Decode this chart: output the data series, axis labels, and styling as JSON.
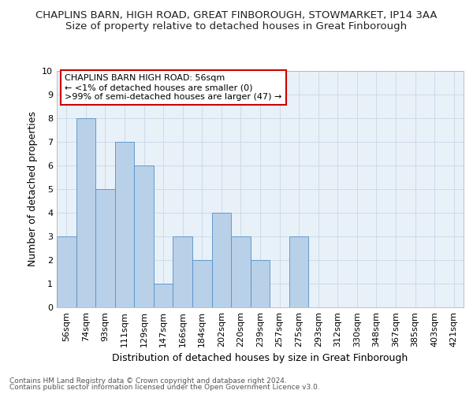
{
  "title": "CHAPLINS BARN, HIGH ROAD, GREAT FINBOROUGH, STOWMARKET, IP14 3AA",
  "subtitle": "Size of property relative to detached houses in Great Finborough",
  "xlabel": "Distribution of detached houses by size in Great Finborough",
  "ylabel": "Number of detached properties",
  "categories": [
    "56sqm",
    "74sqm",
    "93sqm",
    "111sqm",
    "129sqm",
    "147sqm",
    "166sqm",
    "184sqm",
    "202sqm",
    "220sqm",
    "239sqm",
    "257sqm",
    "275sqm",
    "293sqm",
    "312sqm",
    "330sqm",
    "348sqm",
    "367sqm",
    "385sqm",
    "403sqm",
    "421sqm"
  ],
  "values": [
    3,
    8,
    5,
    7,
    6,
    1,
    3,
    2,
    4,
    3,
    2,
    0,
    3,
    0,
    0,
    0,
    0,
    0,
    0,
    0,
    0
  ],
  "bar_color": "#b8d0e8",
  "bar_edge_color": "#5590c8",
  "annotation_box_color": "#ffffff",
  "annotation_box_edge": "#cc0000",
  "annotation_line1": "CHAPLINS BARN HIGH ROAD: 56sqm",
  "annotation_line2": "← <1% of detached houses are smaller (0)",
  "annotation_line3": ">99% of semi-detached houses are larger (47) →",
  "footer1": "Contains HM Land Registry data © Crown copyright and database right 2024.",
  "footer2": "Contains public sector information licensed under the Open Government Licence v3.0.",
  "ylim": [
    0,
    10
  ],
  "yticks": [
    0,
    1,
    2,
    3,
    4,
    5,
    6,
    7,
    8,
    9,
    10
  ],
  "title_fontsize": 9.5,
  "subtitle_fontsize": 9.5,
  "axis_label_fontsize": 9,
  "tick_fontsize": 8,
  "annotation_fontsize": 8,
  "footer_fontsize": 6.5,
  "background_color": "#ffffff",
  "plot_bg_color": "#e8f0f8",
  "grid_color": "#c8d8e8"
}
